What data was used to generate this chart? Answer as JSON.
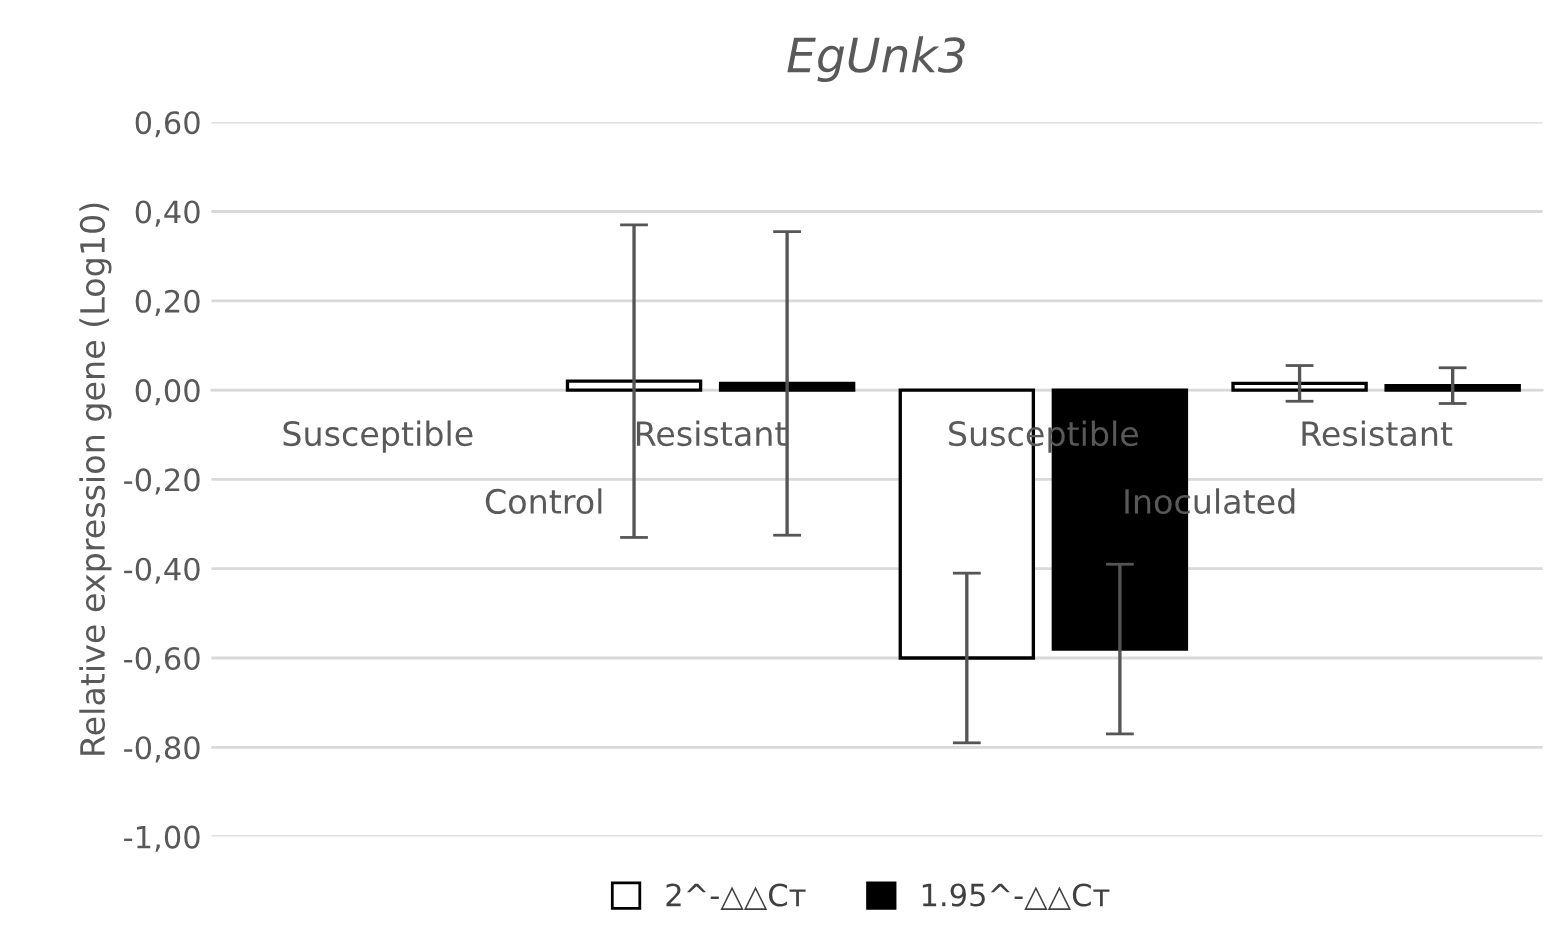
{
  "chart_data": {
    "type": "bar",
    "title": "EgUnk3",
    "ylabel": "Relative expression gene (Log10)",
    "categories": [
      "Susceptible",
      "Resistant",
      "Susceptible",
      "Resistant"
    ],
    "series": [
      {
        "name": "2^-△△Cт",
        "color": "#ffffff",
        "values": [
          null,
          0.02,
          -0.6,
          0.015
        ],
        "errors": [
          null,
          0.35,
          0.19,
          0.04
        ]
      },
      {
        "name": "1.95^-△△Cт",
        "color": "#000000",
        "values": [
          null,
          0.015,
          -0.58,
          0.01
        ],
        "errors": [
          null,
          0.34,
          0.19,
          0.04
        ]
      }
    ],
    "annotations": [
      "Control",
      "Inoculated"
    ],
    "ylim": [
      -1.0,
      0.6
    ],
    "yticks": [
      {
        "value": -1.0,
        "label": "-1,00"
      },
      {
        "value": -0.8,
        "label": "-0,80"
      },
      {
        "value": -0.6,
        "label": "-0,60"
      },
      {
        "value": -0.4,
        "label": "-0,40"
      },
      {
        "value": -0.2,
        "label": "-0,20"
      },
      {
        "value": 0,
        "label": "0,00"
      },
      {
        "value": 0.2,
        "label": "0,20"
      },
      {
        "value": 0.4,
        "label": "0,40"
      },
      {
        "value": 0.6,
        "label": "0,60"
      }
    ],
    "grid": "y",
    "legend": "bottom"
  }
}
